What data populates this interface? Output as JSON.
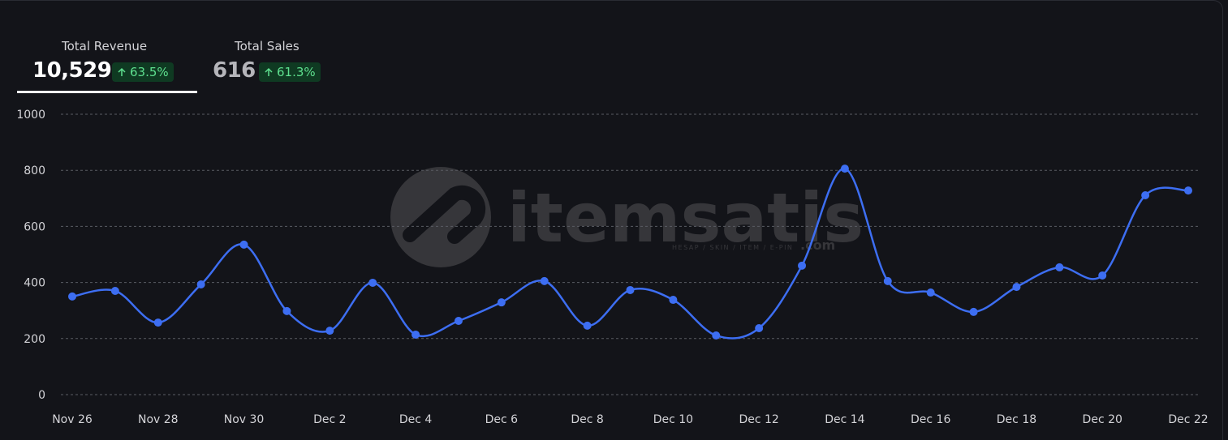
{
  "stats": [
    {
      "label": "Total Revenue",
      "value": "10,529",
      "change": "63.5%"
    },
    {
      "label": "Total Sales",
      "value": "616",
      "change": "61.3%"
    }
  ],
  "watermark": {
    "name": "itemsatis",
    "tagline": "HESAP / SKIN / ITEM / E-PIN",
    "suffix": ".com"
  },
  "chart_data": {
    "type": "line",
    "categories": [
      "Nov 26",
      null,
      "Nov 28",
      null,
      "Nov 30",
      null,
      "Dec 2",
      null,
      "Dec 4",
      null,
      "Dec 6",
      null,
      "Dec 8",
      null,
      "Dec 10",
      null,
      "Dec 12",
      null,
      "Dec 14",
      null,
      "Dec 16",
      null,
      "Dec 18",
      null,
      "Dec 20",
      null,
      "Dec 22"
    ],
    "series": [
      {
        "color": "#3d6ef2",
        "values": [
          350,
          370,
          257,
          393,
          535,
          298,
          228,
          399,
          214,
          263,
          329,
          405,
          246,
          373,
          338,
          211,
          237,
          460,
          806,
          405,
          364,
          295,
          384,
          454,
          425,
          711,
          728
        ]
      }
    ],
    "ylim": [
      0,
      1000
    ],
    "yticks": [
      0,
      200,
      400,
      600,
      800,
      1000
    ],
    "grid": true
  }
}
